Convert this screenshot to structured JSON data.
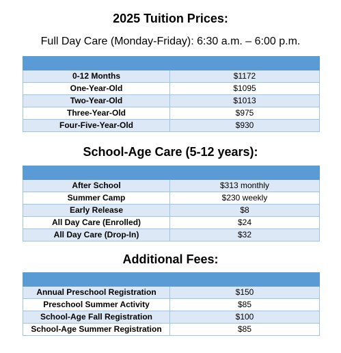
{
  "tuition": {
    "title": "2025 Tuition Prices:",
    "subtitle": "Full Day Care (Monday-Friday): 6:30 a.m. – 6:00 p.m.",
    "rows": [
      {
        "label": "0-12 Months",
        "price": "$1172"
      },
      {
        "label": "One-Year-Old",
        "price": "$1095"
      },
      {
        "label": "Two-Year-Old",
        "price": "$1013"
      },
      {
        "label": "Three-Year-Old",
        "price": "$975"
      },
      {
        "label": "Four-Five-Year-Old",
        "price": "$930"
      }
    ]
  },
  "school_age": {
    "title": "School-Age Care (5-12 years):",
    "rows": [
      {
        "label": "After School",
        "price": "$313 monthly"
      },
      {
        "label": "Summer Camp",
        "price": "$230 weekly"
      },
      {
        "label": "Early Release",
        "price": "$8"
      },
      {
        "label": "All Day Care (Enrolled)",
        "price": "$24"
      },
      {
        "label": "All Day Care (Drop-In)",
        "price": "$32"
      }
    ]
  },
  "fees": {
    "title": "Additional Fees:",
    "rows": [
      {
        "label": "Annual Preschool Registration",
        "price": "$150"
      },
      {
        "label": "Preschool Summer Activity",
        "price": "$85"
      },
      {
        "label": "School-Age Fall Registration",
        "price": "$100"
      },
      {
        "label": "School-Age Summer Registration",
        "price": "$85"
      }
    ]
  },
  "colors": {
    "header_band": "#5b9bd5",
    "row_shade": "#dde8f6",
    "border": "#9dc3e6"
  }
}
